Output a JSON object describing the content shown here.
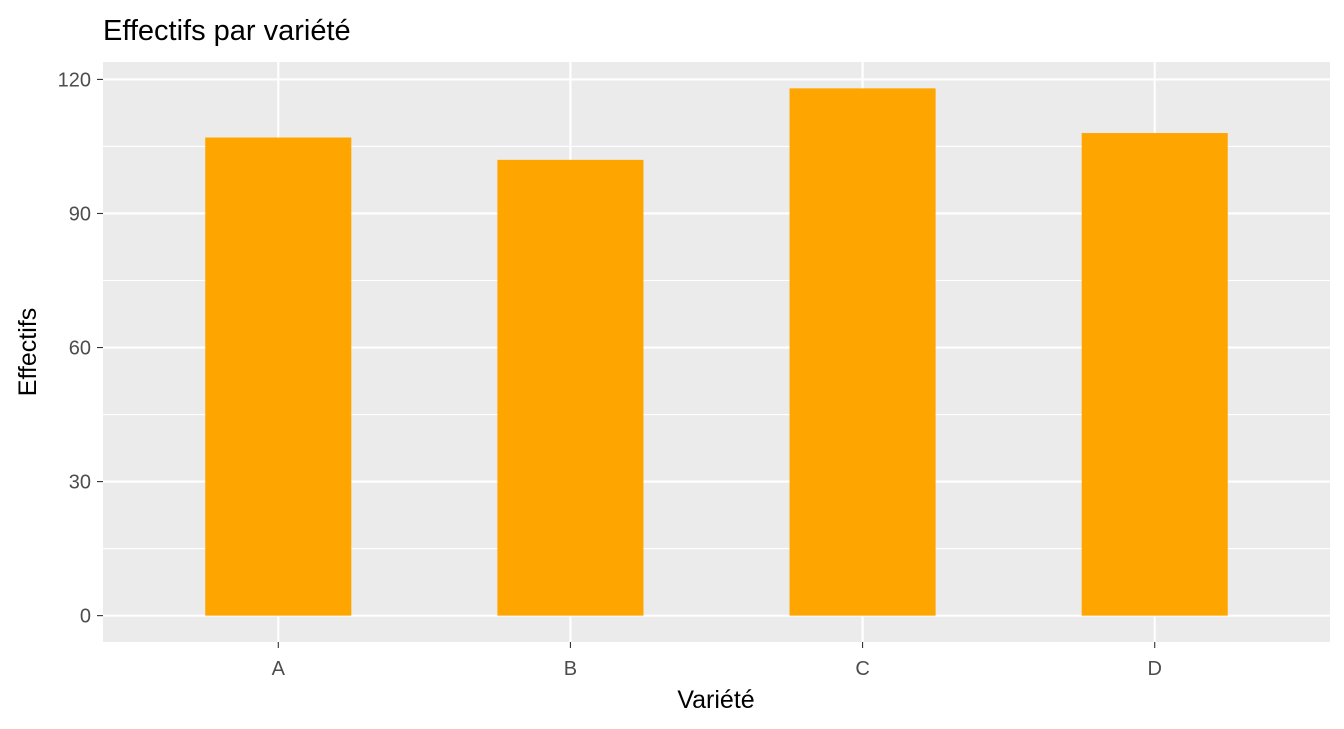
{
  "chart_data": {
    "type": "bar",
    "title": "Effectifs par variété",
    "xlabel": "Variété",
    "ylabel": "Effectifs",
    "categories": [
      "A",
      "B",
      "C",
      "D"
    ],
    "values": [
      107,
      102,
      118,
      108
    ],
    "ylim": [
      -5.9,
      123.9
    ],
    "yticks": [
      "0",
      "30",
      "60",
      "90",
      "120"
    ],
    "grid": true,
    "legend": "none",
    "colors": {
      "bar": "#FFA500",
      "panel": "#EBEBEB",
      "grid": "#FFFFFF",
      "axis_text": "#4D4D4D",
      "tick": "#333333"
    }
  }
}
